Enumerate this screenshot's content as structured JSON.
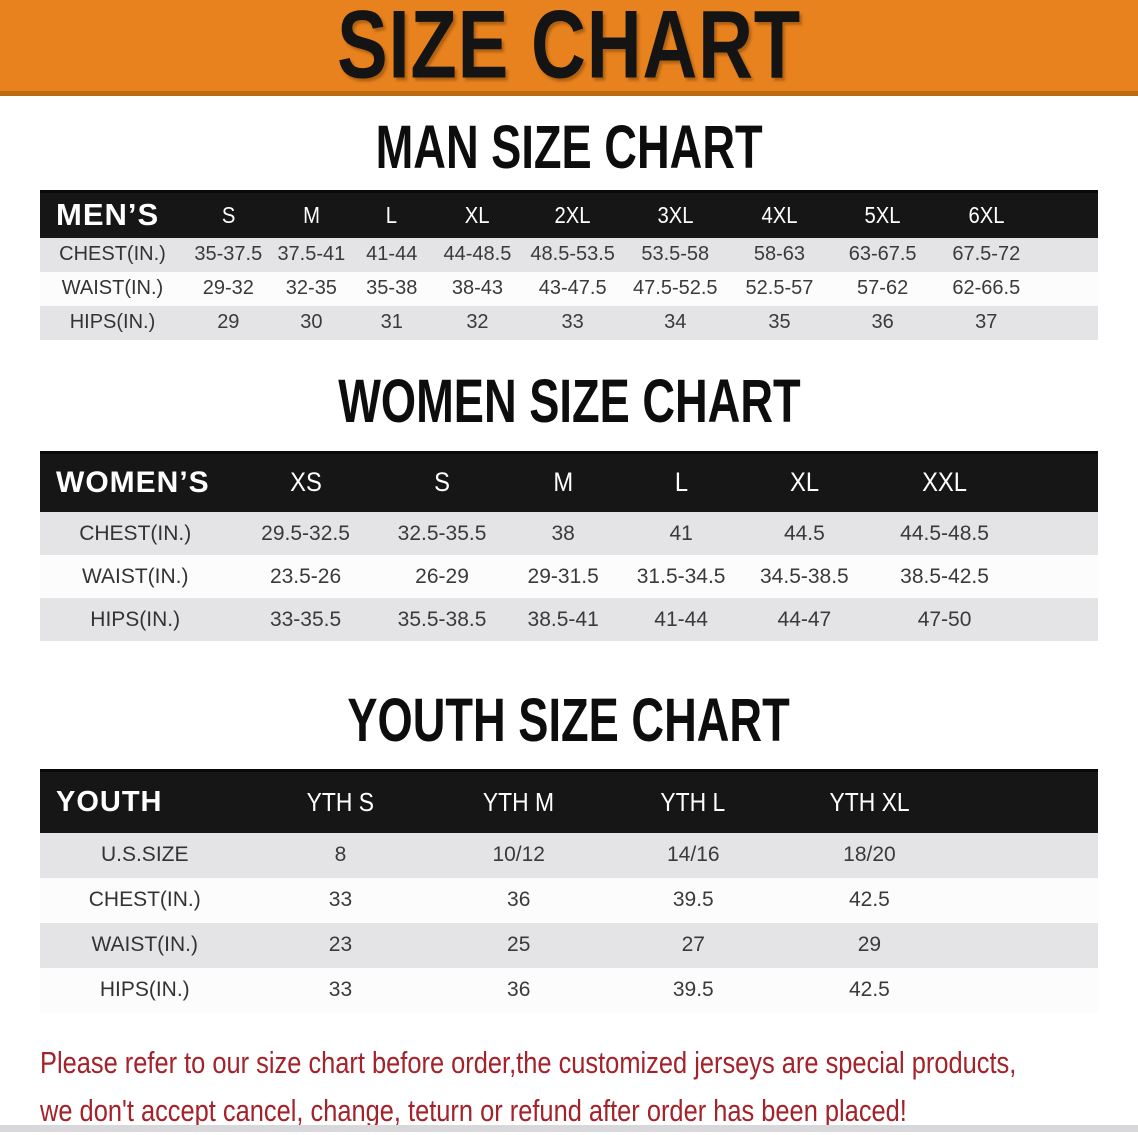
{
  "banner": {
    "title": "SIZE CHART"
  },
  "colors": {
    "banner_bg": "#E8821E",
    "banner_underline": "#BC6A10",
    "table_header_bg": "#161616",
    "row_band_gray": "#E4E4E6",
    "row_white": "#FCFCFC",
    "disclaimer_red": "#A42229"
  },
  "sections": [
    {
      "heading": "MAN SIZE CHART",
      "table": {
        "label": "MEN’S",
        "columns": [
          "S",
          "M",
          "L",
          "XL",
          "2XL",
          "3XL",
          "4XL",
          "5XL",
          "6XL"
        ],
        "rows": [
          {
            "label": "CHEST(IN.)",
            "values": [
              "35-37.5",
              "37.5-41",
              "41-44",
              "44-48.5",
              "48.5-53.5",
              "53.5-58",
              "58-63",
              "63-67.5",
              "67.5-72"
            ]
          },
          {
            "label": "WAIST(IN.)",
            "values": [
              "29-32",
              "32-35",
              "35-38",
              "38-43",
              "43-47.5",
              "47.5-52.5",
              "52.5-57",
              "57-62",
              "62-66.5"
            ]
          },
          {
            "label": "HIPS(IN.)",
            "values": [
              "29",
              "30",
              "31",
              "32",
              "33",
              "34",
              "35",
              "36",
              "37"
            ]
          }
        ]
      }
    },
    {
      "heading": "WOMEN SIZE CHART",
      "table": {
        "label": "WOMEN’S",
        "columns": [
          "XS",
          "S",
          "M",
          "L",
          "XL",
          "XXL"
        ],
        "rows": [
          {
            "label": "CHEST(IN.)",
            "values": [
              "29.5-32.5",
              "32.5-35.5",
              "38",
              "41",
              "44.5",
              "44.5-48.5"
            ]
          },
          {
            "label": "WAIST(IN.)",
            "values": [
              "23.5-26",
              "26-29",
              "29-31.5",
              "31.5-34.5",
              "34.5-38.5",
              "38.5-42.5"
            ]
          },
          {
            "label": "HIPS(IN.)",
            "values": [
              "33-35.5",
              "35.5-38.5",
              "38.5-41",
              "41-44",
              "44-47",
              "47-50"
            ]
          }
        ]
      }
    },
    {
      "heading": "YOUTH SIZE CHART",
      "table": {
        "label": "YOUTH",
        "columns": [
          "YTH S",
          "YTH M",
          "YTH L",
          "YTH XL"
        ],
        "rows": [
          {
            "label": "U.S.SIZE",
            "values": [
              "8",
              "10/12",
              "14/16",
              "18/20"
            ]
          },
          {
            "label": "CHEST(IN.)",
            "values": [
              "33",
              "36",
              "39.5",
              "42.5"
            ]
          },
          {
            "label": "WAIST(IN.)",
            "values": [
              "23",
              "25",
              "27",
              "29"
            ]
          },
          {
            "label": "HIPS(IN.)",
            "values": [
              "33",
              "36",
              "39.5",
              "42.5"
            ]
          }
        ]
      }
    }
  ],
  "disclaimer": {
    "line1": "Please refer to our size chart before order,the customized jerseys are special products,",
    "line2": "we don't accept cancel, change, teturn or refund after order has been placed!"
  }
}
